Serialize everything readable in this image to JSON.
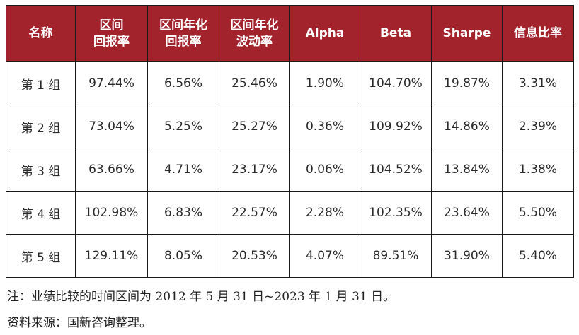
{
  "table": {
    "headers": [
      [
        "名称"
      ],
      [
        "区间",
        "回报率"
      ],
      [
        "区间年化",
        "回报率"
      ],
      [
        "区间年化",
        "波动率"
      ],
      [
        "Alpha"
      ],
      [
        "Beta"
      ],
      [
        "Sharpe"
      ],
      [
        "信息比率"
      ]
    ],
    "rows": [
      [
        "第 1 组",
        "97.44%",
        "6.56%",
        "25.46%",
        "1.90%",
        "104.70%",
        "19.87%",
        "3.31%"
      ],
      [
        "第 2 组",
        "73.04%",
        "5.25%",
        "25.27%",
        "0.36%",
        "109.92%",
        "14.86%",
        "2.39%"
      ],
      [
        "第 3 组",
        "63.66%",
        "4.71%",
        "23.17%",
        "0.06%",
        "104.52%",
        "13.84%",
        "1.38%"
      ],
      [
        "第 4 组",
        "102.98%",
        "6.83%",
        "22.57%",
        "2.28%",
        "102.35%",
        "23.64%",
        "5.50%"
      ],
      [
        "第 5 组",
        "129.11%",
        "8.05%",
        "20.53%",
        "4.07%",
        "89.51%",
        "31.90%",
        "5.40%"
      ]
    ]
  },
  "notes": {
    "note1": "注：业绩比较的时间区间为 2012 年 5 月 31 日~2023 年 1 月 31 日。",
    "note2": "资料来源：国新咨询整理。"
  },
  "colors": {
    "header_bg": "#a3232d",
    "header_text": "#ffffff"
  }
}
